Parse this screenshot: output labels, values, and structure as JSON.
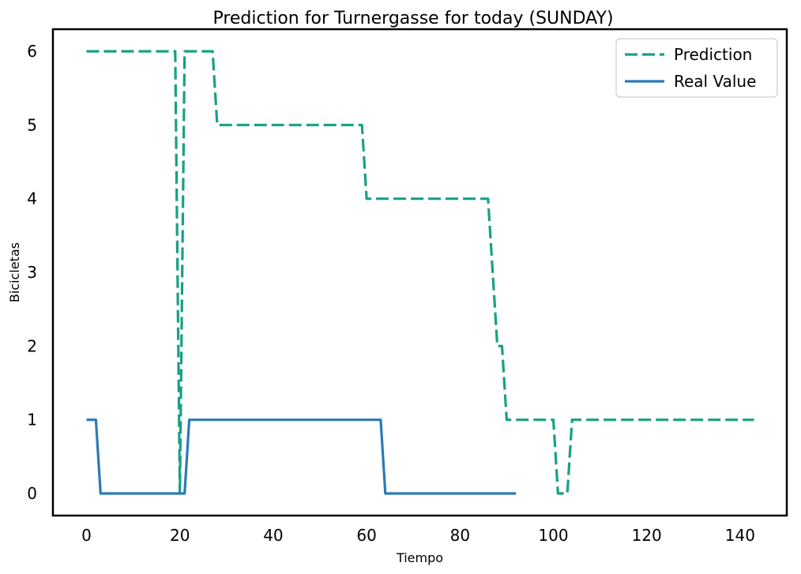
{
  "chart_data": {
    "type": "line",
    "title": "Prediction for Turnergasse for today (SUNDAY)",
    "xlabel": "Tiempo",
    "ylabel": "Bicicletas",
    "xlim": [
      -7.2,
      150
    ],
    "ylim": [
      -0.3,
      6.3
    ],
    "xticks": [
      0,
      20,
      40,
      60,
      80,
      100,
      120,
      140
    ],
    "yticks": [
      0,
      1,
      2,
      3,
      4,
      5,
      6
    ],
    "grid": false,
    "legend": "top-right",
    "series": [
      {
        "name": "Prediction",
        "style": "dashed",
        "color": "#17a085",
        "points": [
          [
            0,
            6
          ],
          [
            19,
            6
          ],
          [
            20,
            0
          ],
          [
            21,
            6
          ],
          [
            27,
            6
          ],
          [
            28,
            5
          ],
          [
            59,
            5
          ],
          [
            60,
            4
          ],
          [
            86,
            4
          ],
          [
            88,
            2
          ],
          [
            89,
            2
          ],
          [
            90,
            1
          ],
          [
            100,
            1
          ],
          [
            101,
            0
          ],
          [
            103,
            0
          ],
          [
            104,
            1
          ],
          [
            143,
            1
          ]
        ]
      },
      {
        "name": "Real Value",
        "style": "solid",
        "color": "#2a7ab8",
        "points": [
          [
            0,
            1
          ],
          [
            2,
            1
          ],
          [
            3,
            0
          ],
          [
            20,
            0
          ],
          [
            21,
            0
          ],
          [
            22,
            1
          ],
          [
            63,
            1
          ],
          [
            64,
            0
          ],
          [
            92,
            0
          ]
        ]
      }
    ]
  }
}
